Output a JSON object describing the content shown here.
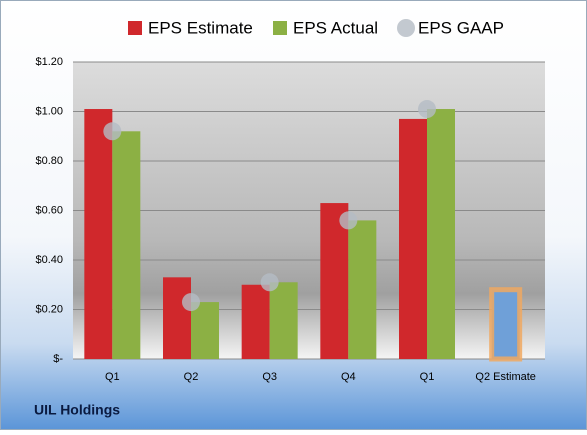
{
  "chart_data": {
    "type": "bar",
    "footer": "UIL Holdings",
    "categories": [
      "Q1",
      "Q2",
      "Q3",
      "Q4",
      "Q1",
      "Q2 Estimate"
    ],
    "series": [
      {
        "name": "EPS Estimate",
        "color": "#d0282c",
        "values": [
          1.01,
          0.33,
          0.3,
          0.63,
          0.97,
          0.28
        ],
        "highlight": {
          "index": 5,
          "color": "#6fa0d8",
          "outline": "#f0a860"
        }
      },
      {
        "name": "EPS Actual",
        "color": "#8cb044",
        "values": [
          0.92,
          0.23,
          0.31,
          0.56,
          1.01,
          null
        ]
      },
      {
        "name": "EPS GAAP",
        "color": "#b4bcc4",
        "marker": "circle",
        "values": [
          0.92,
          0.23,
          0.31,
          0.56,
          1.01,
          null
        ]
      }
    ],
    "ylim": [
      0,
      1.2
    ],
    "yticks": [
      {
        "value": 0,
        "label": "$-"
      },
      {
        "value": 0.2,
        "label": "$0.20"
      },
      {
        "value": 0.4,
        "label": "$0.40"
      },
      {
        "value": 0.6,
        "label": "$0.60"
      },
      {
        "value": 0.8,
        "label": "$0.80"
      },
      {
        "value": 1.0,
        "label": "$1.00"
      },
      {
        "value": 1.2,
        "label": "$1.20"
      }
    ],
    "grid": true
  }
}
